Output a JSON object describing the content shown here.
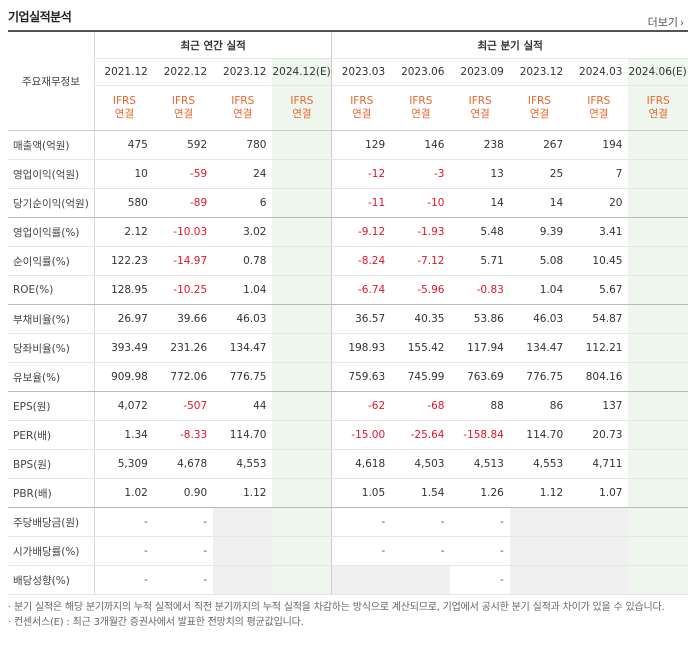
{
  "header": {
    "title": "기업실적분석",
    "more_label": "더보기",
    "more_icon": "chevron-right-icon"
  },
  "table": {
    "row_header_label": "주요재무정보",
    "annual_group": "최근 연간 실적",
    "quarter_group": "최근 분기 실적",
    "periods": [
      "2021.12",
      "2022.12",
      "2023.12",
      "2024.12(E)",
      "2023.03",
      "2023.06",
      "2023.09",
      "2023.12",
      "2024.03",
      "2024.06(E)"
    ],
    "ifrs_line1": "IFRS",
    "ifrs_line2": "연결",
    "rows": [
      {
        "label": "매출액(억원)",
        "values": [
          "475",
          "592",
          "780",
          "",
          "129",
          "146",
          "238",
          "267",
          "194",
          ""
        ]
      },
      {
        "label": "영업이익(억원)",
        "values": [
          "10",
          "-59",
          "24",
          "",
          "-12",
          "-3",
          "13",
          "25",
          "7",
          ""
        ]
      },
      {
        "label": "당기순이익(억원)",
        "values": [
          "580",
          "-89",
          "6",
          "",
          "-11",
          "-10",
          "14",
          "14",
          "20",
          ""
        ]
      },
      {
        "label": "영업이익률(%)",
        "values": [
          "2.12",
          "-10.03",
          "3.02",
          "",
          "-9.12",
          "-1.93",
          "5.48",
          "9.39",
          "3.41",
          ""
        ]
      },
      {
        "label": "순이익률(%)",
        "values": [
          "122.23",
          "-14.97",
          "0.78",
          "",
          "-8.24",
          "-7.12",
          "5.71",
          "5.08",
          "10.45",
          ""
        ]
      },
      {
        "label": "ROE(%)",
        "values": [
          "128.95",
          "-10.25",
          "1.04",
          "",
          "-6.74",
          "-5.96",
          "-0.83",
          "1.04",
          "5.67",
          ""
        ]
      },
      {
        "label": "부채비율(%)",
        "values": [
          "26.97",
          "39.66",
          "46.03",
          "",
          "36.57",
          "40.35",
          "53.86",
          "46.03",
          "54.87",
          ""
        ]
      },
      {
        "label": "당좌비율(%)",
        "values": [
          "393.49",
          "231.26",
          "134.47",
          "",
          "198.93",
          "155.42",
          "117.94",
          "134.47",
          "112.21",
          ""
        ]
      },
      {
        "label": "유보율(%)",
        "values": [
          "909.98",
          "772.06",
          "776.75",
          "",
          "759.63",
          "745.99",
          "763.69",
          "776.75",
          "804.16",
          ""
        ]
      },
      {
        "label": "EPS(원)",
        "values": [
          "4,072",
          "-507",
          "44",
          "",
          "-62",
          "-68",
          "88",
          "86",
          "137",
          ""
        ]
      },
      {
        "label": "PER(배)",
        "values": [
          "1.34",
          "-8.33",
          "114.70",
          "",
          "-15.00",
          "-25.64",
          "-158.84",
          "114.70",
          "20.73",
          ""
        ]
      },
      {
        "label": "BPS(원)",
        "values": [
          "5,309",
          "4,678",
          "4,553",
          "",
          "4,618",
          "4,503",
          "4,513",
          "4,553",
          "4,711",
          ""
        ]
      },
      {
        "label": "PBR(배)",
        "values": [
          "1.02",
          "0.90",
          "1.12",
          "",
          "1.05",
          "1.54",
          "1.26",
          "1.12",
          "1.07",
          ""
        ]
      },
      {
        "label": "주당배당금(원)",
        "values": [
          "-",
          "-",
          "",
          "",
          "-",
          "-",
          "-",
          "",
          "",
          ""
        ]
      },
      {
        "label": "시가배당률(%)",
        "values": [
          "-",
          "-",
          "",
          "",
          "-",
          "-",
          "-",
          "",
          "",
          ""
        ]
      },
      {
        "label": "배당성향(%)",
        "values": [
          "-",
          "-",
          "",
          "",
          "",
          "",
          "-",
          "",
          "",
          ""
        ]
      }
    ]
  },
  "notes": [
    "· 분기 실적은 해당 분기까지의 누적 실적에서 직전 분기까지의 누적 실적을 차감하는 방식으로 계산되므로, 기업에서 공시한 분기 실적과 차이가 있을 수 있습니다.",
    "· 컨센서스(E) : 최근 3개월간 증권사에서 발표한 전망치의 평균값입니다."
  ],
  "colors": {
    "negative": "#e0162b",
    "ifrs": "#e8652e",
    "estimate_bg": "#eef6ee",
    "empty_bg": "#f0f0f0"
  }
}
